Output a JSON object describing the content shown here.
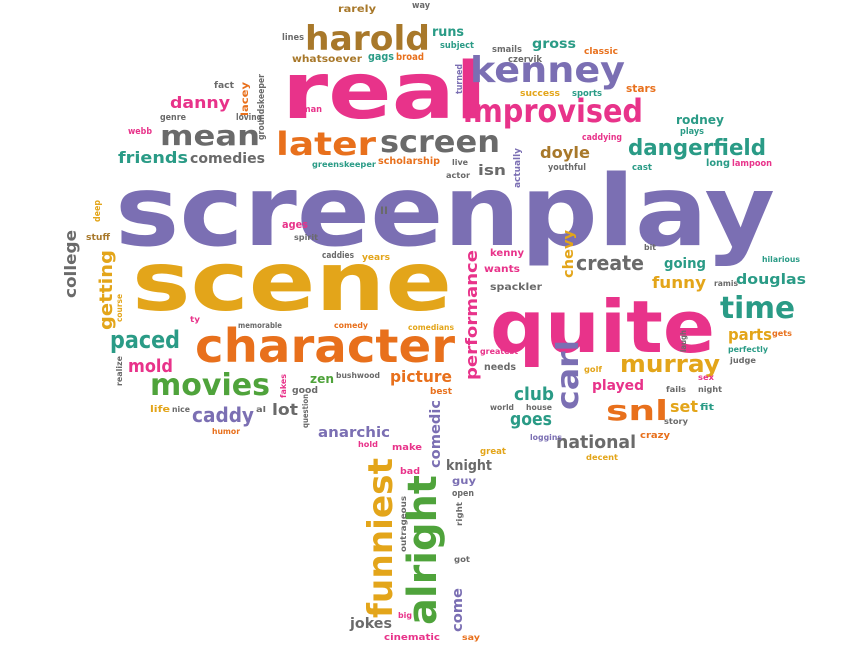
{
  "palette": {
    "purple": "#7b6fb3",
    "pink": "#e8338a",
    "orange": "#e8701c",
    "gold": "#e3a51a",
    "green": "#4fa33b",
    "teal": "#2a9b86",
    "gray": "#6a6a6a",
    "brown": "#a8782a"
  },
  "words": [
    {
      "text": "screenplay",
      "color": "purple"
    },
    {
      "text": "scene",
      "color": "gold"
    },
    {
      "text": "real",
      "color": "pink"
    },
    {
      "text": "quite",
      "color": "pink"
    },
    {
      "text": "character",
      "color": "orange"
    },
    {
      "text": "harold",
      "color": "brown"
    },
    {
      "text": "kenney",
      "color": "purple"
    },
    {
      "text": "improvised",
      "color": "pink"
    },
    {
      "text": "later",
      "color": "orange"
    },
    {
      "text": "screen",
      "color": "gray"
    },
    {
      "text": "mean",
      "color": "gray"
    },
    {
      "text": "dangerfield",
      "color": "teal"
    },
    {
      "text": "movies",
      "color": "green"
    },
    {
      "text": "murray",
      "color": "gold"
    },
    {
      "text": "time",
      "color": "teal"
    },
    {
      "text": "funniest",
      "color": "gold"
    },
    {
      "text": "alright",
      "color": "green"
    },
    {
      "text": "carl",
      "color": "purple"
    },
    {
      "text": "snl",
      "color": "orange"
    },
    {
      "text": "paced",
      "color": "teal"
    },
    {
      "text": "caddy",
      "color": "purple"
    },
    {
      "text": "performance",
      "color": "pink"
    },
    {
      "text": "create",
      "color": "gray"
    },
    {
      "text": "friends",
      "color": "teal"
    },
    {
      "text": "comedies",
      "color": "gray"
    },
    {
      "text": "danny",
      "color": "pink"
    },
    {
      "text": "doyle",
      "color": "brown"
    },
    {
      "text": "club",
      "color": "teal"
    },
    {
      "text": "played",
      "color": "pink"
    },
    {
      "text": "set",
      "color": "gold"
    },
    {
      "text": "goes",
      "color": "teal"
    },
    {
      "text": "national",
      "color": "gray"
    },
    {
      "text": "douglas",
      "color": "teal"
    },
    {
      "text": "parts",
      "color": "gold"
    },
    {
      "text": "funny",
      "color": "gold"
    },
    {
      "text": "going",
      "color": "teal"
    },
    {
      "text": "chevy",
      "color": "gold"
    },
    {
      "text": "college",
      "color": "gray"
    },
    {
      "text": "getting",
      "color": "gold"
    },
    {
      "text": "mold",
      "color": "pink"
    },
    {
      "text": "lot",
      "color": "gray"
    },
    {
      "text": "picture",
      "color": "orange"
    },
    {
      "text": "anarchic",
      "color": "purple"
    },
    {
      "text": "comedic",
      "color": "purple"
    },
    {
      "text": "knight",
      "color": "gray"
    },
    {
      "text": "jokes",
      "color": "gray"
    },
    {
      "text": "come",
      "color": "purple"
    },
    {
      "text": "runs",
      "color": "teal"
    },
    {
      "text": "gross",
      "color": "teal"
    },
    {
      "text": "rodney",
      "color": "teal"
    },
    {
      "text": "isn",
      "color": "gray"
    },
    {
      "text": "zen",
      "color": "green"
    },
    {
      "text": "scholarship",
      "color": "orange"
    },
    {
      "text": "lacey",
      "color": "orange"
    },
    {
      "text": "kenny",
      "color": "pink"
    },
    {
      "text": "wants",
      "color": "pink"
    },
    {
      "text": "spackler",
      "color": "gray"
    },
    {
      "text": "lines",
      "color": "gray"
    },
    {
      "text": "gags",
      "color": "teal"
    },
    {
      "text": "whatsoever",
      "color": "brown"
    },
    {
      "text": "broad",
      "color": "orange"
    },
    {
      "text": "subject",
      "color": "teal"
    },
    {
      "text": "rarely",
      "color": "brown"
    },
    {
      "text": "way",
      "color": "gray"
    },
    {
      "text": "smails",
      "color": "gray"
    },
    {
      "text": "classic",
      "color": "orange"
    },
    {
      "text": "czervik",
      "color": "gray"
    },
    {
      "text": "success",
      "color": "gold"
    },
    {
      "text": "sports",
      "color": "teal"
    },
    {
      "text": "turned",
      "color": "purple"
    },
    {
      "text": "stars",
      "color": "orange"
    },
    {
      "text": "fact",
      "color": "gray"
    },
    {
      "text": "groundskeeper",
      "color": "gray"
    },
    {
      "text": "genre",
      "color": "gray"
    },
    {
      "text": "man",
      "color": "pink"
    },
    {
      "text": "loving",
      "color": "gray"
    },
    {
      "text": "webb",
      "color": "pink"
    },
    {
      "text": "plays",
      "color": "teal"
    },
    {
      "text": "caddying",
      "color": "pink"
    },
    {
      "text": "long",
      "color": "teal"
    },
    {
      "text": "lampoon",
      "color": "pink"
    },
    {
      "text": "cast",
      "color": "teal"
    },
    {
      "text": "youthful",
      "color": "gray"
    },
    {
      "text": "actually",
      "color": "purple"
    },
    {
      "text": "greenskeeper",
      "color": "teal"
    },
    {
      "text": "live",
      "color": "gray"
    },
    {
      "text": "actor",
      "color": "gray"
    },
    {
      "text": "deep",
      "color": "gold"
    },
    {
      "text": "stuff",
      "color": "brown"
    },
    {
      "text": "ll",
      "color": "gray"
    },
    {
      "text": "ages",
      "color": "pink"
    },
    {
      "text": "spirit",
      "color": "gray"
    },
    {
      "text": "caddies",
      "color": "gray"
    },
    {
      "text": "years",
      "color": "gold"
    },
    {
      "text": "bit",
      "color": "gray"
    },
    {
      "text": "hilarious",
      "color": "teal"
    },
    {
      "text": "ramis",
      "color": "gray"
    },
    {
      "text": "course",
      "color": "gold"
    },
    {
      "text": "ty",
      "color": "pink"
    },
    {
      "text": "memorable",
      "color": "gray"
    },
    {
      "text": "comedy",
      "color": "orange"
    },
    {
      "text": "comedians",
      "color": "gold"
    },
    {
      "text": "greatest",
      "color": "pink"
    },
    {
      "text": "needs",
      "color": "gray"
    },
    {
      "text": "laugh",
      "color": "gray"
    },
    {
      "text": "perfectly",
      "color": "teal"
    },
    {
      "text": "judge",
      "color": "gray"
    },
    {
      "text": "gets",
      "color": "orange"
    },
    {
      "text": "realize",
      "color": "gray"
    },
    {
      "text": "good",
      "color": "gray"
    },
    {
      "text": "bushwood",
      "color": "gray"
    },
    {
      "text": "golf",
      "color": "gold"
    },
    {
      "text": "sex",
      "color": "pink"
    },
    {
      "text": "night",
      "color": "gray"
    },
    {
      "text": "fails",
      "color": "gray"
    },
    {
      "text": "fit",
      "color": "teal"
    },
    {
      "text": "life",
      "color": "gold"
    },
    {
      "text": "nice",
      "color": "gray"
    },
    {
      "text": "al",
      "color": "gray"
    },
    {
      "text": "fakes",
      "color": "pink"
    },
    {
      "text": "question",
      "color": "gray"
    },
    {
      "text": "best",
      "color": "orange"
    },
    {
      "text": "world",
      "color": "gray"
    },
    {
      "text": "house",
      "color": "gray"
    },
    {
      "text": "story",
      "color": "gray"
    },
    {
      "text": "crazy",
      "color": "orange"
    },
    {
      "text": "humor",
      "color": "orange"
    },
    {
      "text": "hold",
      "color": "pink"
    },
    {
      "text": "make",
      "color": "pink"
    },
    {
      "text": "loggins",
      "color": "purple"
    },
    {
      "text": "great",
      "color": "gold"
    },
    {
      "text": "decent",
      "color": "gold"
    },
    {
      "text": "bad",
      "color": "pink"
    },
    {
      "text": "guy",
      "color": "purple"
    },
    {
      "text": "open",
      "color": "gray"
    },
    {
      "text": "outrageous",
      "color": "gray"
    },
    {
      "text": "right",
      "color": "gray"
    },
    {
      "text": "got",
      "color": "gray"
    },
    {
      "text": "big",
      "color": "pink"
    },
    {
      "text": "cinematic",
      "color": "pink"
    },
    {
      "text": "say",
      "color": "orange"
    }
  ]
}
